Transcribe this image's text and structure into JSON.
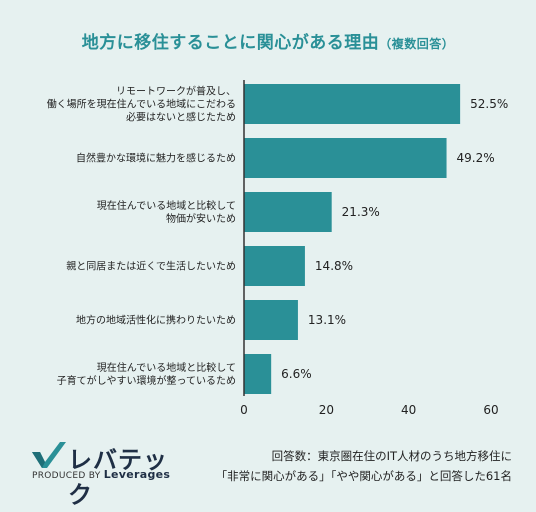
{
  "chart_data": {
    "type": "bar",
    "orientation": "horizontal",
    "title": "地方に移住することに関心がある理由",
    "subtitle": "（複数回答）",
    "categories": [
      [
        "リモートワークが普及し、",
        "働く場所を現在住んでいる地域にこだわる",
        "必要はないと感じたため"
      ],
      [
        "自然豊かな環境に魅力を感じるため"
      ],
      [
        "現在住んでいる地域と比較して",
        "物価が安いため"
      ],
      [
        "親と同居または近くで生活したいため"
      ],
      [
        "地方の地域活性化に携わりたいため"
      ],
      [
        "現在住んでいる地域と比較して",
        "子育てがしやすい環境が整っているため"
      ]
    ],
    "values": [
      52.5,
      49.2,
      21.3,
      14.8,
      13.1,
      6.6
    ],
    "value_suffix": "%",
    "xlim": [
      0,
      60
    ],
    "xticks": [
      0,
      20,
      40,
      60
    ],
    "bar_color": "#2a9097",
    "grid": false
  },
  "logo": {
    "brand": "レバテック",
    "produced_by": "PRODUCED BY",
    "company": "Leverages",
    "mark_color": "#2a9097"
  },
  "note": {
    "line1": "回答数：東京圏在住のIT人材のうち地方移住に",
    "line2": "「非常に関心がある」「やや関心がある」と回答した61名"
  }
}
